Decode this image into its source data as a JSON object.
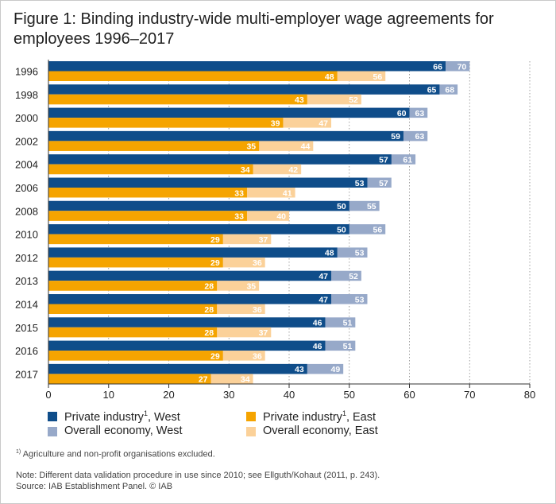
{
  "chart_data": {
    "type": "bar",
    "orientation": "horizontal",
    "title": "Figure 1: Binding industry-wide multi-employer wage agreements for employees 1996–2017",
    "categories": [
      "1996",
      "1998",
      "2000",
      "2002",
      "2004",
      "2006",
      "2008",
      "2010",
      "2012",
      "2013",
      "2014",
      "2015",
      "2016",
      "2017"
    ],
    "series": [
      {
        "name": "Private industry",
        "region": "West",
        "sup": "1",
        "color": "#0f4d8a",
        "values": [
          66,
          65,
          60,
          59,
          57,
          53,
          50,
          50,
          48,
          47,
          47,
          46,
          46,
          43
        ]
      },
      {
        "name": "Overall economy, West",
        "color": "#97a9c9",
        "values": [
          70,
          68,
          63,
          63,
          61,
          57,
          55,
          56,
          53,
          52,
          53,
          51,
          51,
          49
        ]
      },
      {
        "name": "Private industry",
        "region": "East",
        "sup": "1",
        "color": "#f5a400",
        "values": [
          48,
          43,
          39,
          35,
          34,
          33,
          33,
          29,
          29,
          28,
          28,
          28,
          29,
          27
        ]
      },
      {
        "name": "Overall economy, East",
        "color": "#fbd199",
        "values": [
          56,
          52,
          47,
          44,
          42,
          41,
          40,
          37,
          36,
          35,
          36,
          37,
          36,
          34
        ]
      }
    ],
    "xlim": [
      0,
      80
    ],
    "xticks": [
      0,
      10,
      20,
      30,
      40,
      50,
      60,
      70,
      80
    ],
    "grid": "vertical dotted",
    "legend_position": "bottom"
  },
  "footnote": {
    "sup": "1)",
    "text": "Agriculture and non-profit organisations excluded."
  },
  "note": "Note: Different data validation procedure in use since 2010; see Ellguth/Kohaut (2011, p. 243).",
  "source": "Source: IAB Establishment Panel. © IAB"
}
